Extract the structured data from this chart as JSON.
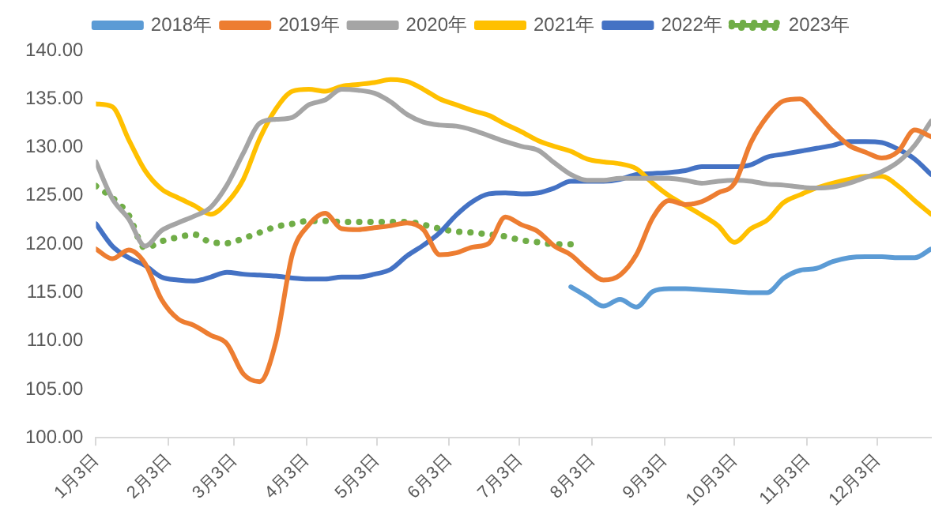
{
  "chart_data": {
    "type": "line",
    "legend": "top",
    "grid": false,
    "marker": "none",
    "x": [
      "--01-03",
      "--01-10",
      "--01-17",
      "--01-24",
      "--01-31",
      "--02-07",
      "--02-14",
      "--02-21",
      "--02-28",
      "--03-07",
      "--03-14",
      "--03-21",
      "--03-28",
      "--04-04",
      "--04-11",
      "--04-18",
      "--04-25",
      "--05-02",
      "--05-09",
      "--05-16",
      "--05-23",
      "--05-30",
      "--06-06",
      "--06-13",
      "--06-20",
      "--06-27",
      "--07-04",
      "--07-11",
      "--07-18",
      "--07-25",
      "--08-01",
      "--08-08",
      "--08-15",
      "--08-22",
      "--08-29",
      "--09-05",
      "--09-12",
      "--09-19",
      "--09-26",
      "--10-03",
      "--10-10",
      "--10-17",
      "--10-24",
      "--10-31",
      "--11-07",
      "--11-14",
      "--11-21",
      "--11-28",
      "--12-05",
      "--12-12",
      "--12-19",
      "--12-26"
    ],
    "xlim": [
      "--01-03",
      "--12-26"
    ],
    "xticks": [
      {
        "value": "--01-03",
        "label": "1月3日"
      },
      {
        "value": "--02-03",
        "label": "2月3日"
      },
      {
        "value": "--03-03",
        "label": "3月3日"
      },
      {
        "value": "--04-03",
        "label": "4月3日"
      },
      {
        "value": "--05-03",
        "label": "5月3日"
      },
      {
        "value": "--06-03",
        "label": "6月3日"
      },
      {
        "value": "--07-03",
        "label": "7月3日"
      },
      {
        "value": "--08-03",
        "label": "8月3日"
      },
      {
        "value": "--09-03",
        "label": "9月3日"
      },
      {
        "value": "--10-03",
        "label": "10月3日"
      },
      {
        "value": "--11-03",
        "label": "11月3日"
      },
      {
        "value": "--12-03",
        "label": "12月3日"
      }
    ],
    "ylim": [
      100,
      140
    ],
    "yticks": [
      {
        "value": 100,
        "label": "100.00"
      },
      {
        "value": 105,
        "label": "105.00"
      },
      {
        "value": 110,
        "label": "110.00"
      },
      {
        "value": 115,
        "label": "115.00"
      },
      {
        "value": 120,
        "label": "120.00"
      },
      {
        "value": 125,
        "label": "125.00"
      },
      {
        "value": 130,
        "label": "130.00"
      },
      {
        "value": 135,
        "label": "135.00"
      },
      {
        "value": 140,
        "label": "140.00"
      }
    ],
    "series": [
      {
        "name": "2018年",
        "color": "#5b9bd5",
        "line_style": "solid",
        "values": [
          null,
          null,
          null,
          null,
          null,
          null,
          null,
          null,
          null,
          null,
          null,
          null,
          null,
          null,
          null,
          null,
          null,
          null,
          null,
          null,
          null,
          null,
          null,
          null,
          null,
          null,
          null,
          null,
          null,
          115.6,
          114.6,
          113.6,
          114.3,
          113.5,
          115.1,
          115.4,
          115.4,
          115.3,
          115.2,
          115.1,
          115,
          115,
          116.5,
          117.3,
          117.5,
          118.2,
          118.6,
          118.7,
          118.7,
          118.6,
          118.6,
          119.5
        ]
      },
      {
        "name": "2019年",
        "color": "#ed7d31",
        "line_style": "solid",
        "values": [
          119.5,
          118.5,
          119.4,
          118,
          114.3,
          112.3,
          111.6,
          110.6,
          109.7,
          106.6,
          105.8,
          110,
          119,
          122,
          123.2,
          121.6,
          121.5,
          121.7,
          121.9,
          122.2,
          121.5,
          118.9,
          119.1,
          119.7,
          120.1,
          122.8,
          122,
          121.3,
          119.8,
          118.9,
          117.4,
          116.3,
          116.8,
          118.9,
          122.7,
          124.5,
          124.1,
          124.4,
          125.3,
          126.3,
          130.5,
          133.2,
          134.8,
          135,
          133.5,
          131.7,
          130.2,
          129.5,
          128.9,
          129.6,
          131.8,
          131.1
        ]
      },
      {
        "name": "2020年",
        "color": "#a5a5a5",
        "line_style": "solid",
        "values": [
          128.5,
          124.7,
          122.6,
          119.8,
          121.4,
          122.2,
          122.9,
          123.8,
          126.1,
          129.4,
          132.5,
          132.9,
          133.1,
          134.4,
          134.9,
          136,
          135.9,
          135.6,
          134.7,
          133.4,
          132.6,
          132.3,
          132.2,
          131.8,
          131.2,
          130.6,
          130.1,
          129.7,
          128.4,
          127.2,
          126.6,
          126.6,
          126.8,
          126.8,
          126.8,
          126.8,
          126.6,
          126.3,
          126.5,
          126.6,
          126.5,
          126.2,
          126.1,
          125.9,
          125.8,
          125.9,
          126.3,
          126.9,
          127.5,
          128.5,
          130.2,
          132.7
        ]
      },
      {
        "name": "2021年",
        "color": "#ffc000",
        "line_style": "solid",
        "values": [
          134.5,
          134.2,
          130.8,
          127.6,
          125.7,
          124.8,
          124,
          123.1,
          124.3,
          126.7,
          130.9,
          134,
          135.8,
          136,
          135.8,
          136.3,
          136.5,
          136.7,
          137,
          136.8,
          136,
          135,
          134.4,
          133.8,
          133.3,
          132.4,
          131.6,
          130.7,
          130.1,
          129.6,
          128.8,
          128.5,
          128.3,
          127.8,
          126.3,
          125,
          124,
          123,
          121.9,
          120.2,
          121.6,
          122.5,
          124.3,
          125.1,
          125.8,
          126.3,
          126.7,
          127,
          127,
          126,
          124.5,
          123.1
        ]
      },
      {
        "name": "2022年",
        "color": "#4472c4",
        "line_style": "solid",
        "values": [
          122.1,
          119.8,
          118.6,
          117.8,
          116.6,
          116.3,
          116.2,
          116.6,
          117.1,
          116.9,
          116.8,
          116.7,
          116.5,
          116.4,
          116.4,
          116.6,
          116.6,
          116.9,
          117.4,
          118.8,
          119.9,
          121.2,
          123,
          124.4,
          125.2,
          125.3,
          125.2,
          125.3,
          125.8,
          126.5,
          126.5,
          126.5,
          126.7,
          127.2,
          127.3,
          127.4,
          127.6,
          128,
          128,
          128,
          128.2,
          129,
          129.3,
          129.6,
          129.9,
          130.2,
          130.6,
          130.6,
          130.5,
          129.8,
          128.8,
          127.2
        ]
      },
      {
        "name": "2023年",
        "color": "#70ad47",
        "line_style": "dotted",
        "values": [
          126,
          124.8,
          123,
          119.6,
          120.3,
          120.7,
          121,
          120.2,
          120.1,
          120.6,
          121.2,
          121.8,
          122.1,
          122.4,
          122.4,
          122.3,
          122.3,
          122.3,
          122.3,
          122.3,
          122,
          121.6,
          121.3,
          121.2,
          121,
          120.8,
          120.4,
          120.2,
          120,
          120,
          null,
          null,
          null,
          null,
          null,
          null,
          null,
          null,
          null,
          null,
          null,
          null,
          null,
          null,
          null,
          null,
          null,
          null,
          null,
          null,
          null,
          null
        ]
      }
    ]
  }
}
